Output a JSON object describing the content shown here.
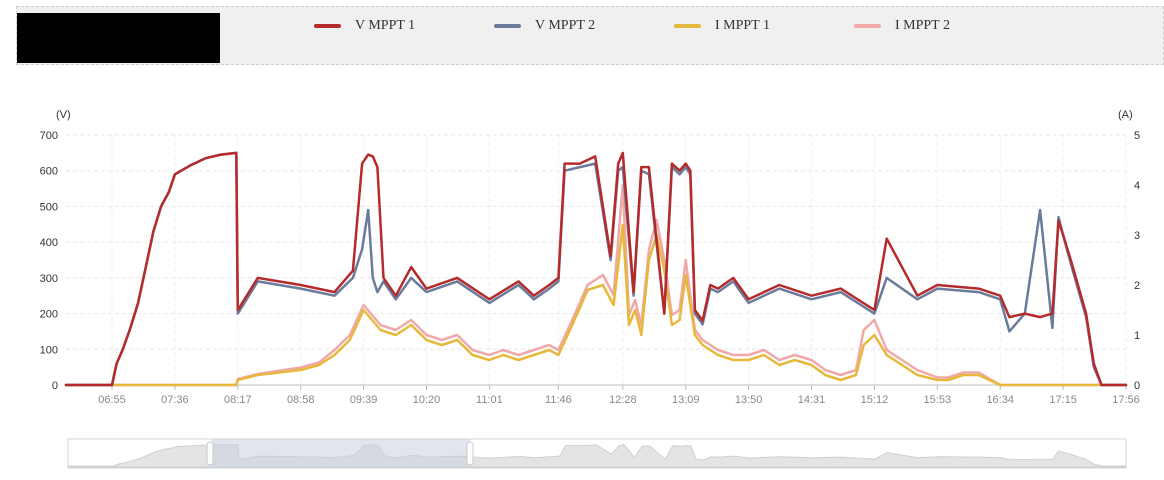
{
  "legend": [
    {
      "label": "V MPPT 1",
      "color": "#b52b2b"
    },
    {
      "label": "V MPPT 2",
      "color": "#6a7b9c"
    },
    {
      "label": "I MPPT 1",
      "color": "#e6b83c"
    },
    {
      "label": "I MPPT 2",
      "color": "#f0a8a8"
    }
  ],
  "chart_data": {
    "type": "line",
    "left_axis_unit": "(V)",
    "right_axis_unit": "(A)",
    "ylim_left": [
      0,
      700
    ],
    "ylim_right": [
      0,
      5
    ],
    "yticks_left": [
      "0",
      "100",
      "200",
      "300",
      "400",
      "500",
      "600",
      "700"
    ],
    "yticks_right": [
      "0",
      "1",
      "2",
      "3",
      "4",
      "5"
    ],
    "xticks": [
      "06:55",
      "07:36",
      "08:17",
      "08:58",
      "09:39",
      "10:20",
      "11:01",
      "11:46",
      "12:28",
      "13:09",
      "13:50",
      "14:31",
      "15:12",
      "15:53",
      "16:34",
      "17:15",
      "17:56"
    ],
    "grid": true,
    "legend_position": "top",
    "series": [
      {
        "name": "V MPPT 1",
        "axis": "left",
        "color": "#b52b2b",
        "x": [
          "06:25",
          "06:55",
          "06:58",
          "07:02",
          "07:07",
          "07:12",
          "07:17",
          "07:22",
          "07:27",
          "07:32",
          "07:36",
          "07:46",
          "07:56",
          "08:06",
          "08:16",
          "08:17",
          "08:30",
          "08:58",
          "09:20",
          "09:32",
          "09:38",
          "09:42",
          "09:45",
          "09:48",
          "09:52",
          "10:00",
          "10:10",
          "10:20",
          "10:40",
          "11:01",
          "11:20",
          "11:30",
          "11:40",
          "11:46",
          "11:50",
          "12:00",
          "12:10",
          "12:20",
          "12:25",
          "12:28",
          "12:35",
          "12:40",
          "12:45",
          "12:55",
          "13:00",
          "13:05",
          "13:09",
          "13:12",
          "13:15",
          "13:20",
          "13:25",
          "13:30",
          "13:40",
          "13:50",
          "14:10",
          "14:31",
          "14:50",
          "15:12",
          "15:20",
          "15:40",
          "15:53",
          "16:20",
          "16:34",
          "16:40",
          "16:50",
          "17:00",
          "17:08",
          "17:12",
          "17:15",
          "17:20",
          "17:30",
          "17:35",
          "17:40",
          "17:56"
        ],
        "y": [
          0,
          0,
          60,
          100,
          160,
          230,
          330,
          430,
          500,
          540,
          590,
          615,
          635,
          645,
          650,
          210,
          300,
          280,
          260,
          320,
          620,
          645,
          640,
          610,
          300,
          250,
          330,
          270,
          300,
          240,
          290,
          250,
          280,
          300,
          620,
          620,
          640,
          360,
          620,
          650,
          260,
          610,
          610,
          200,
          620,
          600,
          620,
          600,
          210,
          180,
          280,
          270,
          300,
          240,
          280,
          250,
          270,
          210,
          410,
          250,
          280,
          270,
          250,
          190,
          200,
          190,
          200,
          460,
          420,
          350,
          200,
          60,
          0,
          0
        ]
      },
      {
        "name": "V MPPT 2",
        "axis": "left",
        "color": "#6a7b9c",
        "x": [
          "06:25",
          "06:55",
          "06:58",
          "07:02",
          "07:07",
          "07:12",
          "07:17",
          "07:22",
          "07:27",
          "07:32",
          "07:36",
          "07:46",
          "07:56",
          "08:06",
          "08:16",
          "08:17",
          "08:30",
          "08:58",
          "09:20",
          "09:32",
          "09:38",
          "09:42",
          "09:45",
          "09:48",
          "09:52",
          "10:00",
          "10:10",
          "10:20",
          "10:40",
          "11:01",
          "11:20",
          "11:30",
          "11:40",
          "11:46",
          "11:50",
          "12:00",
          "12:10",
          "12:20",
          "12:25",
          "12:28",
          "12:35",
          "12:40",
          "12:45",
          "12:55",
          "13:00",
          "13:05",
          "13:09",
          "13:12",
          "13:15",
          "13:20",
          "13:25",
          "13:30",
          "13:40",
          "13:50",
          "14:10",
          "14:31",
          "14:50",
          "15:12",
          "15:20",
          "15:40",
          "15:53",
          "16:20",
          "16:34",
          "16:40",
          "16:50",
          "17:00",
          "17:08",
          "17:12",
          "17:15",
          "17:20",
          "17:30",
          "17:35",
          "17:40",
          "17:56"
        ],
        "y": [
          0,
          0,
          60,
          100,
          160,
          230,
          330,
          430,
          500,
          540,
          590,
          615,
          635,
          645,
          650,
          200,
          290,
          270,
          250,
          300,
          380,
          490,
          300,
          260,
          290,
          240,
          300,
          260,
          290,
          230,
          280,
          240,
          270,
          290,
          600,
          610,
          620,
          350,
          600,
          610,
          250,
          600,
          590,
          200,
          610,
          590,
          610,
          590,
          200,
          170,
          270,
          260,
          290,
          230,
          270,
          240,
          260,
          200,
          300,
          240,
          270,
          260,
          240,
          150,
          200,
          490,
          160,
          470,
          420,
          340,
          190,
          50,
          0,
          0
        ]
      },
      {
        "name": "I MPPT 1",
        "axis": "right",
        "color": "#e6b83c",
        "x": [
          "06:25",
          "08:16",
          "08:17",
          "08:30",
          "08:58",
          "09:10",
          "09:20",
          "09:30",
          "09:39",
          "09:50",
          "10:00",
          "10:10",
          "10:20",
          "10:30",
          "10:40",
          "10:50",
          "11:01",
          "11:10",
          "11:20",
          "11:30",
          "11:40",
          "11:46",
          "11:55",
          "12:05",
          "12:15",
          "12:22",
          "12:28",
          "12:32",
          "12:36",
          "12:40",
          "12:45",
          "12:50",
          "12:55",
          "13:00",
          "13:05",
          "13:09",
          "13:15",
          "13:20",
          "13:30",
          "13:40",
          "13:50",
          "14:00",
          "14:10",
          "14:20",
          "14:31",
          "14:40",
          "14:50",
          "15:00",
          "15:05",
          "15:12",
          "15:20",
          "15:30",
          "15:40",
          "15:53",
          "16:00",
          "16:10",
          "16:20",
          "16:34",
          "17:15",
          "17:56"
        ],
        "y": [
          0,
          0,
          0.1,
          0.2,
          0.3,
          0.4,
          0.6,
          0.9,
          1.5,
          1.1,
          1.0,
          1.2,
          0.9,
          0.8,
          0.9,
          0.6,
          0.5,
          0.6,
          0.5,
          0.6,
          0.7,
          0.6,
          1.2,
          1.9,
          2.0,
          1.6,
          3.2,
          1.2,
          1.5,
          1.0,
          2.5,
          3.0,
          2.3,
          1.2,
          1.3,
          2.2,
          1.0,
          0.8,
          0.6,
          0.5,
          0.5,
          0.6,
          0.4,
          0.5,
          0.4,
          0.2,
          0.1,
          0.2,
          0.8,
          1.0,
          0.6,
          0.4,
          0.2,
          0.1,
          0.1,
          0.2,
          0.2,
          0,
          0,
          0
        ]
      },
      {
        "name": "I MPPT 2",
        "axis": "right",
        "color": "#f0a8a8",
        "x": [
          "06:25",
          "08:16",
          "08:17",
          "08:30",
          "08:58",
          "09:10",
          "09:20",
          "09:30",
          "09:39",
          "09:50",
          "10:00",
          "10:10",
          "10:20",
          "10:30",
          "10:40",
          "10:50",
          "11:01",
          "11:10",
          "11:20",
          "11:30",
          "11:40",
          "11:46",
          "11:55",
          "12:05",
          "12:15",
          "12:22",
          "12:28",
          "12:32",
          "12:36",
          "12:40",
          "12:45",
          "12:50",
          "12:55",
          "13:00",
          "13:05",
          "13:09",
          "13:15",
          "13:20",
          "13:30",
          "13:40",
          "13:50",
          "14:00",
          "14:10",
          "14:20",
          "14:31",
          "14:40",
          "14:50",
          "15:00",
          "15:05",
          "15:12",
          "15:20",
          "15:30",
          "15:40",
          "15:53",
          "16:00",
          "16:10",
          "16:20",
          "16:34",
          "17:15",
          "17:56"
        ],
        "y": [
          0,
          0,
          0.12,
          0.22,
          0.35,
          0.45,
          0.7,
          1.0,
          1.6,
          1.2,
          1.1,
          1.3,
          1.0,
          0.9,
          1.0,
          0.7,
          0.6,
          0.7,
          0.6,
          0.7,
          0.8,
          0.7,
          1.3,
          2.0,
          2.2,
          1.8,
          4.0,
          1.4,
          1.7,
          1.2,
          2.7,
          3.3,
          2.5,
          1.4,
          1.5,
          2.5,
          1.1,
          0.9,
          0.7,
          0.6,
          0.6,
          0.7,
          0.5,
          0.6,
          0.5,
          0.3,
          0.2,
          0.3,
          1.1,
          1.3,
          0.7,
          0.5,
          0.3,
          0.15,
          0.15,
          0.25,
          0.25,
          0,
          0,
          0
        ]
      }
    ]
  }
}
